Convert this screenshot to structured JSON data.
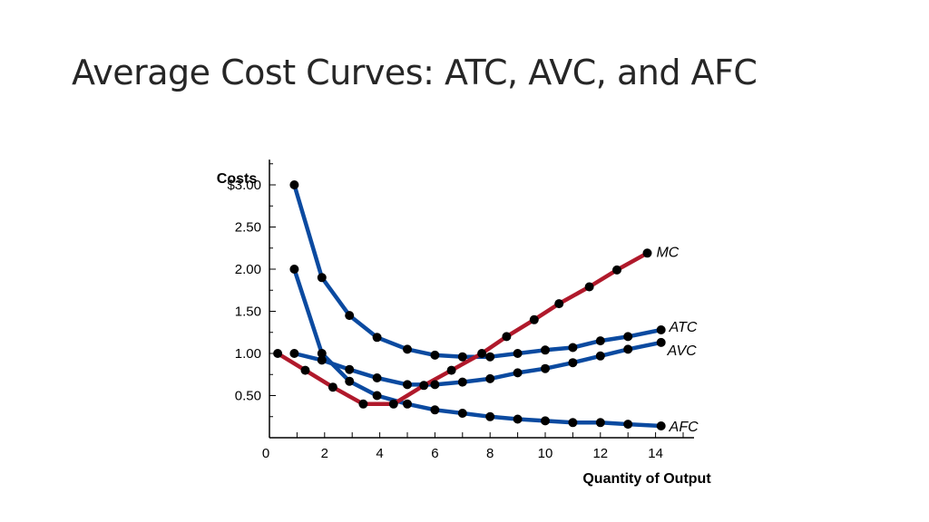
{
  "slide": {
    "title": "Average Cost Curves: ATC, AVC, and AFC"
  },
  "chart_data": {
    "type": "line",
    "title": "",
    "ylabel": "Costs",
    "xlabel": "Quantity of Output",
    "xlim": [
      0,
      15
    ],
    "ylim": [
      0,
      3.3
    ],
    "x_ticks": [
      0,
      2,
      4,
      6,
      8,
      10,
      12,
      14
    ],
    "x_tick_labels": [
      "0",
      "2",
      "4",
      "6",
      "8",
      "10",
      "12",
      "14"
    ],
    "y_ticks": [
      0.5,
      1.0,
      1.5,
      2.0,
      2.5,
      3.0
    ],
    "y_tick_labels": [
      "0.50",
      "1.00",
      "1.50",
      "2.00",
      "2.50",
      "$3.00"
    ],
    "grid": false,
    "legend": "none",
    "series": [
      {
        "key": "mc",
        "name": "MC",
        "color": "#b0192b",
        "points": [
          [
            0.3,
            1.0
          ],
          [
            1.3,
            0.8
          ],
          [
            2.3,
            0.6
          ],
          [
            3.4,
            0.4
          ],
          [
            4.5,
            0.4
          ],
          [
            5.6,
            0.62
          ],
          [
            6.6,
            0.8
          ],
          [
            7.7,
            1.0
          ],
          [
            8.6,
            1.2
          ],
          [
            9.6,
            1.4
          ],
          [
            10.5,
            1.59
          ],
          [
            11.6,
            1.79
          ],
          [
            12.6,
            1.99
          ],
          [
            13.7,
            2.19
          ]
        ]
      },
      {
        "key": "atc",
        "name": "ATC",
        "color": "#0b4aa0",
        "points": [
          [
            0.9,
            3.0
          ],
          [
            1.9,
            1.9
          ],
          [
            2.9,
            1.45
          ],
          [
            3.9,
            1.19
          ],
          [
            5.0,
            1.05
          ],
          [
            6.0,
            0.98
          ],
          [
            7.0,
            0.96
          ],
          [
            8.0,
            0.96
          ],
          [
            9.0,
            1.0
          ],
          [
            10.0,
            1.04
          ],
          [
            11.0,
            1.07
          ],
          [
            12.0,
            1.15
          ],
          [
            13.0,
            1.2
          ],
          [
            14.2,
            1.28
          ]
        ]
      },
      {
        "key": "avc",
        "name": "AVC",
        "color": "#0b4aa0",
        "points": [
          [
            0.9,
            1.0
          ],
          [
            1.9,
            0.92
          ],
          [
            2.9,
            0.81
          ],
          [
            3.9,
            0.71
          ],
          [
            5.0,
            0.63
          ],
          [
            6.0,
            0.63
          ],
          [
            7.0,
            0.66
          ],
          [
            8.0,
            0.7
          ],
          [
            9.0,
            0.77
          ],
          [
            10.0,
            0.82
          ],
          [
            11.0,
            0.89
          ],
          [
            12.0,
            0.97
          ],
          [
            13.0,
            1.05
          ],
          [
            14.2,
            1.13
          ]
        ]
      },
      {
        "key": "afc",
        "name": "AFC",
        "color": "#0b4aa0",
        "points": [
          [
            0.9,
            2.0
          ],
          [
            1.9,
            1.0
          ],
          [
            2.9,
            0.67
          ],
          [
            3.9,
            0.5
          ],
          [
            5.0,
            0.4
          ],
          [
            6.0,
            0.33
          ],
          [
            7.0,
            0.29
          ],
          [
            8.0,
            0.25
          ],
          [
            9.0,
            0.22
          ],
          [
            10.0,
            0.2
          ],
          [
            11.0,
            0.18
          ],
          [
            12.0,
            0.18
          ],
          [
            13.0,
            0.16
          ],
          [
            14.2,
            0.14
          ]
        ]
      }
    ]
  }
}
